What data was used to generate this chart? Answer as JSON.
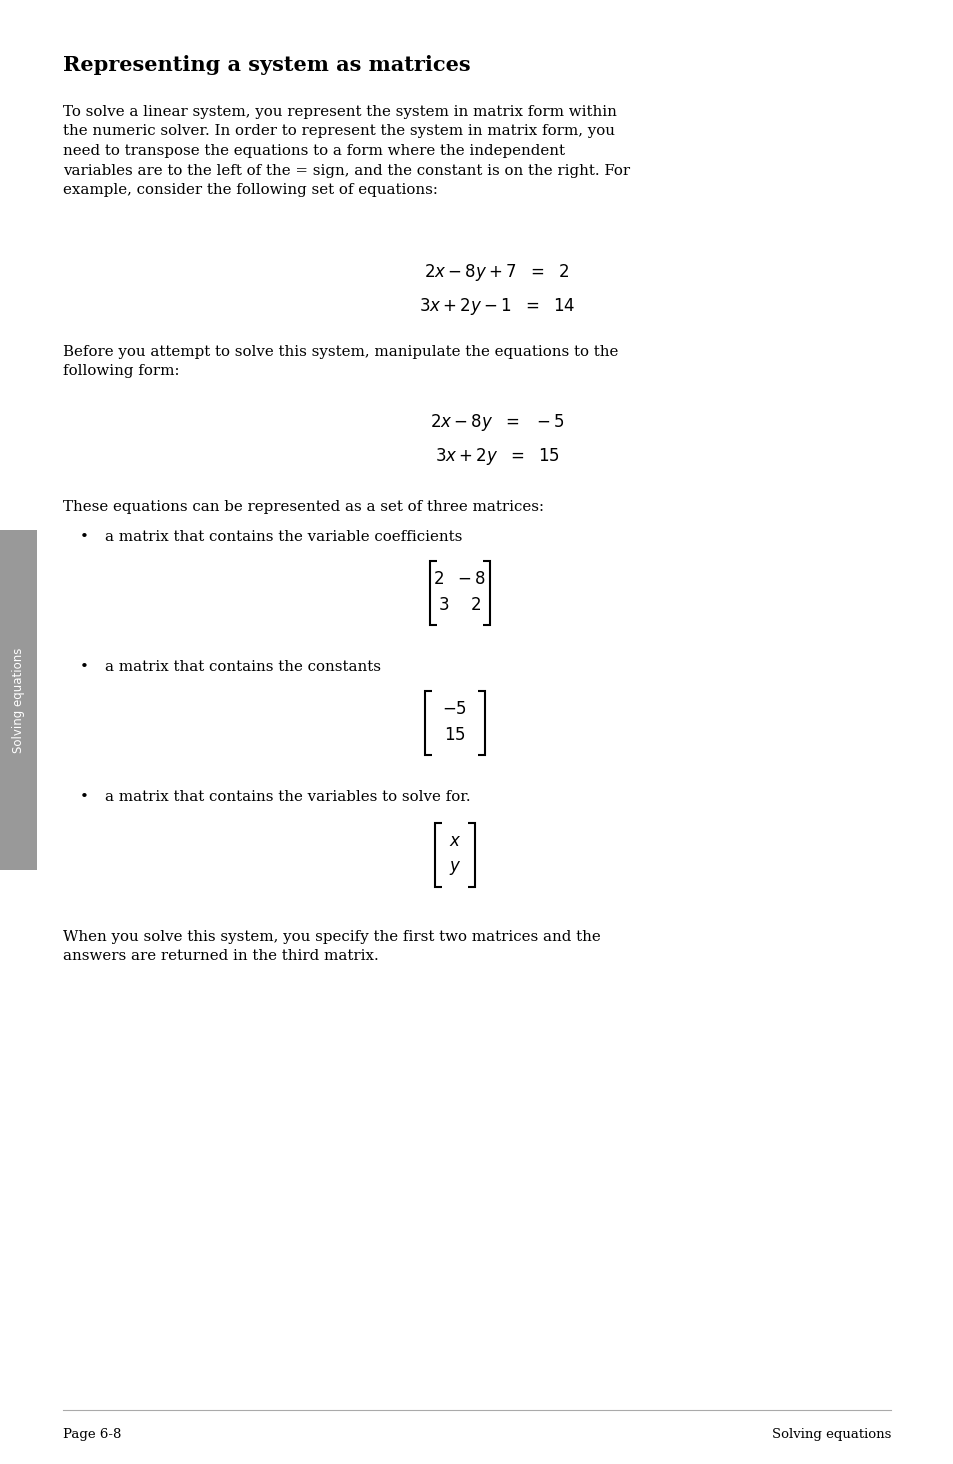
{
  "title": "Representing a system as matrices",
  "background_color": "#ffffff",
  "sidebar_text": "Solving equations",
  "page_label_left": "Page 6-8",
  "page_label_right": "Solving equations",
  "para1": "To solve a linear system, you represent the system in matrix form within\nthe numeric solver. In order to represent the system in matrix form, you\nneed to transpose the equations to a form where the independent\nvariables are to the left of the = sign, and the constant is on the right. For\nexample, consider the following set of equations:",
  "eq1a": "$2x - 8y + 7  =  2$",
  "eq1b": "$3x + 2y - 1  =  14$",
  "para2": "Before you attempt to solve this system, manipulate the equations to the\nfollowing form:",
  "eq2a": "$2x - 8y  =  -5$",
  "eq2b": "$3x + 2y  =  15$",
  "para3": "These equations can be represented as a set of three matrices:",
  "bullet1": "a matrix that contains the variable coefficients",
  "bullet2": "a matrix that contains the constants",
  "bullet3": "a matrix that contains the variables to solve for.",
  "para4": "When you solve this system, you specify the first two matrices and the\nanswers are returned in the third matrix."
}
